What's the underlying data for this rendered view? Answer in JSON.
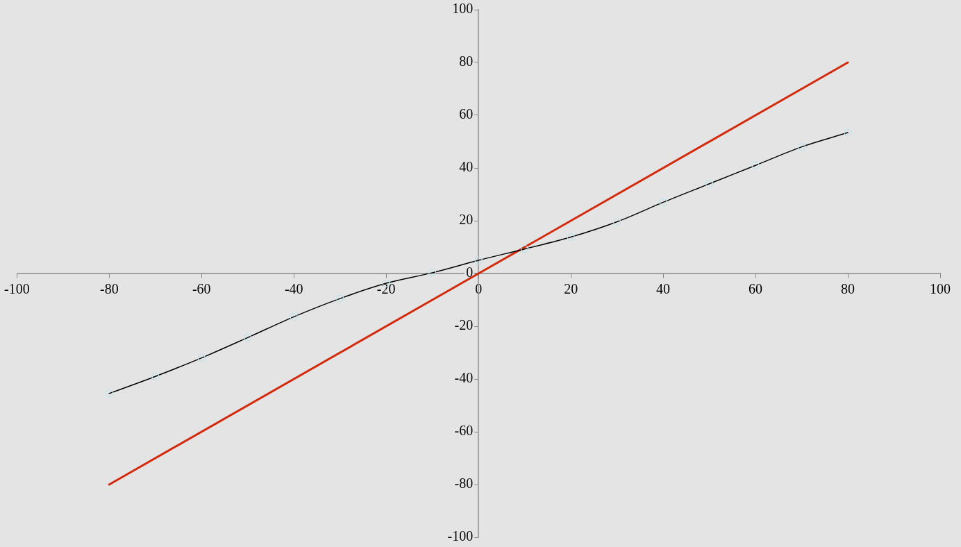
{
  "chart_data": {
    "type": "scatter",
    "series": [
      {
        "type": "scatter",
        "color": "#bfe3ea",
        "marker": "circle",
        "x": [
          -80,
          -70,
          -60,
          -50,
          -40,
          -30,
          -20,
          -10,
          0,
          10,
          20,
          30,
          40,
          50,
          60,
          70,
          80
        ],
        "values": [
          -45.5,
          -39,
          -32,
          -24.3,
          -16.4,
          -9.5,
          -3.7,
          0.3,
          5,
          9.3,
          13.8,
          19.6,
          27,
          34,
          41,
          48,
          53.4
        ]
      },
      {
        "type": "line",
        "color": "#000000",
        "marker": "none",
        "x": [
          -80,
          -70,
          -60,
          -50,
          -40,
          -30,
          -20,
          -10,
          0,
          10,
          20,
          30,
          40,
          50,
          60,
          70,
          80
        ],
        "values": [
          -45.5,
          -39,
          -32,
          -24.3,
          -16.4,
          -9.5,
          -3.7,
          0.3,
          5,
          9.3,
          13.8,
          19.6,
          27,
          34,
          41,
          48,
          53.4
        ]
      },
      {
        "type": "line",
        "color": "#d42a0c",
        "marker": "none",
        "x": [
          -80,
          80
        ],
        "values": [
          -80,
          80
        ]
      }
    ],
    "xlim": [
      -100,
      100
    ],
    "xticks": [
      -100,
      -80,
      -60,
      -40,
      -20,
      0,
      20,
      40,
      60,
      80,
      100
    ],
    "ylim": [
      -100,
      100
    ],
    "yticks": [
      -100,
      -80,
      -60,
      -40,
      -20,
      0,
      20,
      40,
      60,
      80,
      100
    ],
    "grid": false,
    "legend": false
  }
}
